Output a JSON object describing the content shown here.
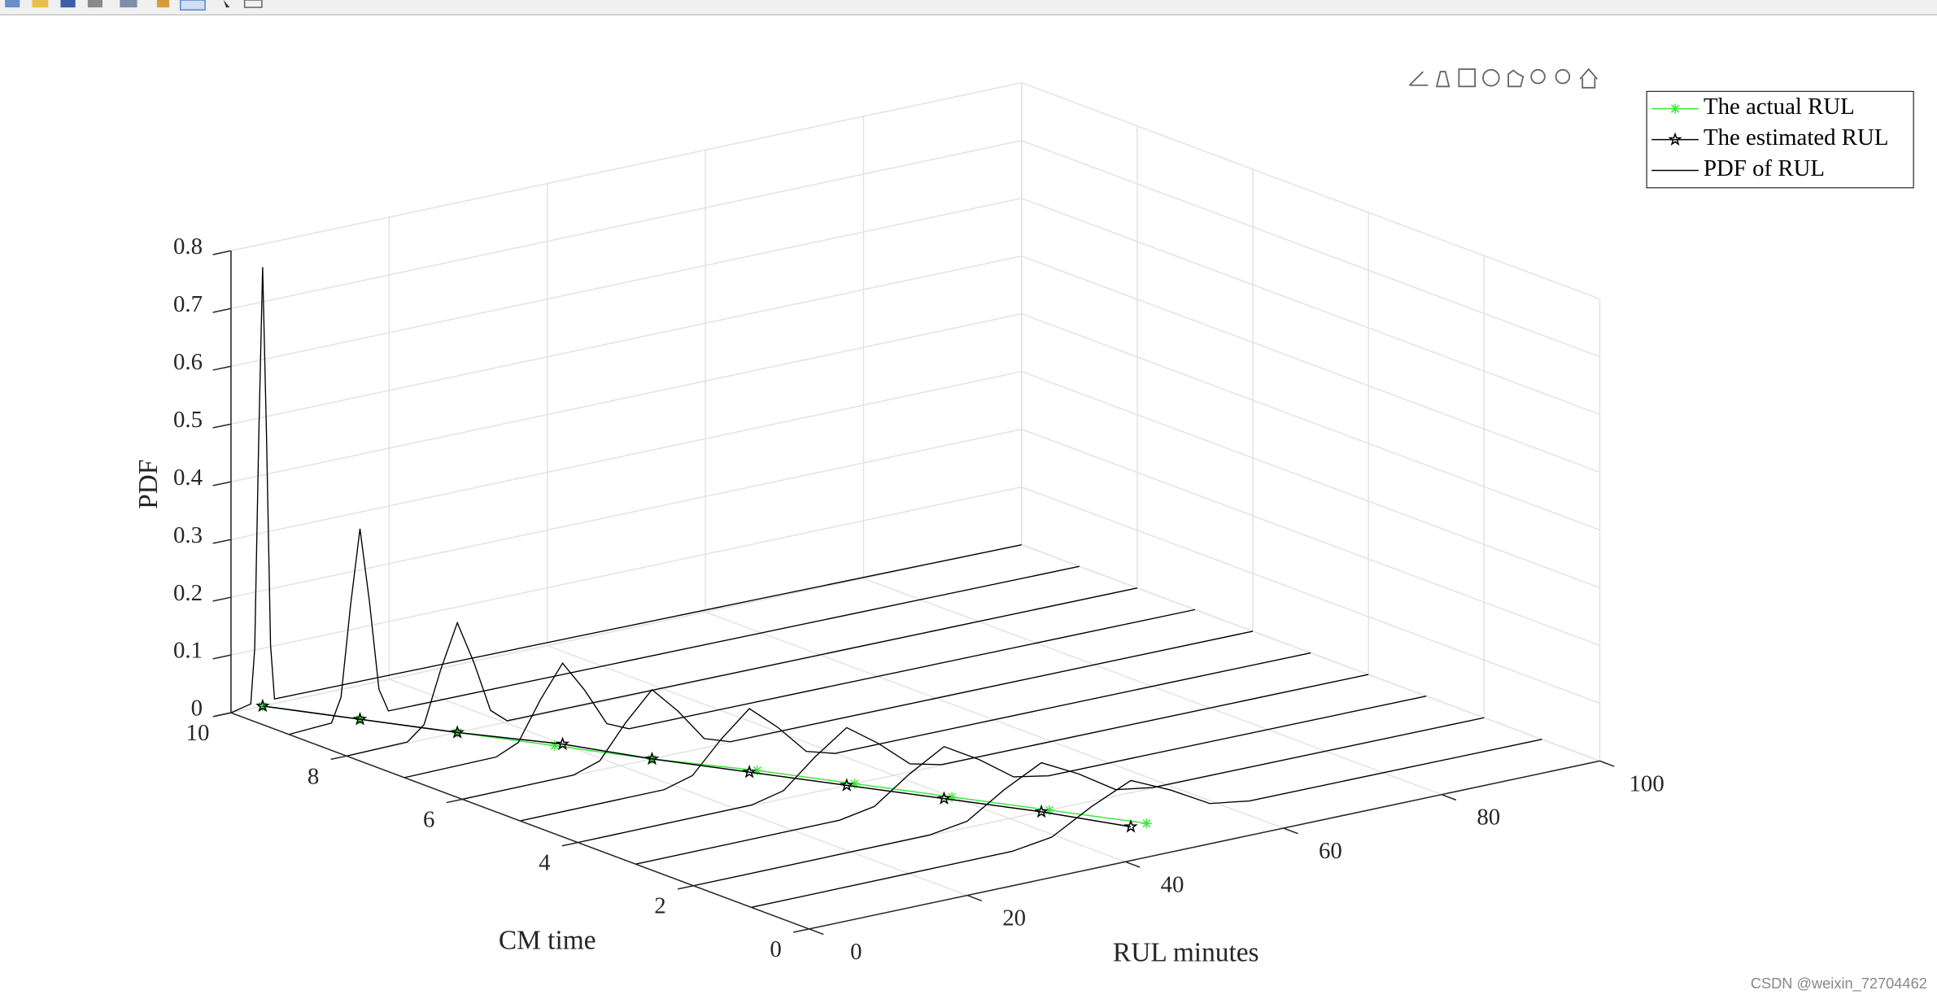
{
  "window": {
    "watermark": "CSDN @weixin_72704462"
  },
  "chart_data": {
    "type": "line3d",
    "xlabel": "RUL minutes",
    "ylabel": "CM time",
    "zlabel": "PDF",
    "xlim": [
      0,
      100
    ],
    "ylim": [
      0,
      10
    ],
    "zlim": [
      0,
      0.8
    ],
    "xticks": [
      0,
      20,
      40,
      60,
      80,
      100
    ],
    "yticks": [
      0,
      2,
      4,
      6,
      8,
      10
    ],
    "zticks": [
      0,
      0.1,
      0.2,
      0.3,
      0.4,
      0.5,
      0.6,
      0.7,
      0.8
    ],
    "grid": true,
    "legend": "top-right",
    "series": [
      {
        "name": "The actual RUL",
        "color": "#3ee63e",
        "marker": "asterisk",
        "x": [
          4,
          9,
          14,
          19,
          24,
          30,
          35,
          40,
          45,
          50
        ],
        "y": [
          10,
          9,
          8,
          7,
          6,
          5,
          4,
          3,
          2,
          1
        ],
        "values": [
          0,
          0,
          0,
          0,
          0,
          0,
          0,
          0,
          0,
          0
        ]
      },
      {
        "name": "The estimated RUL",
        "color": "#000000",
        "marker": "pentagram",
        "x": [
          4,
          9,
          14,
          20,
          24,
          29,
          34,
          39,
          44,
          48
        ],
        "y": [
          10,
          9,
          8,
          7,
          6,
          5,
          4,
          3,
          2,
          1
        ],
        "values": [
          0,
          0,
          0,
          0,
          0,
          0,
          0,
          0,
          0,
          0
        ]
      },
      {
        "name": "PDF of RUL",
        "color": "#000000",
        "curves": [
          {
            "y": 10,
            "x": [
              0,
              2.5,
              3,
              3.5,
              4,
              4.5,
              5,
              5.5,
              100
            ],
            "values": [
              0,
              0.008,
              0.103,
              0.461,
              0.76,
              0.461,
              0.103,
              0.008,
              0
            ]
          },
          {
            "y": 9,
            "x": [
              0,
              5.4,
              6.6,
              7.8,
              9,
              10.2,
              11.4,
              12.6,
              100
            ],
            "values": [
              0,
              0.004,
              0.045,
              0.2,
              0.33,
              0.2,
              0.045,
              0.004,
              0
            ]
          },
          {
            "y": 8,
            "x": [
              0,
              7.7,
              9.8,
              11.9,
              14,
              16.1,
              18.2,
              20.3,
              100
            ],
            "values": [
              0,
              0.002,
              0.026,
              0.115,
              0.19,
              0.115,
              0.026,
              0.002,
              0
            ]
          },
          {
            "y": 7,
            "x": [
              0,
              11.6,
              14.4,
              17.2,
              20,
              22.8,
              25.6,
              28.4,
              100
            ],
            "values": [
              0,
              0.002,
              0.019,
              0.085,
              0.14,
              0.085,
              0.019,
              0.002,
              0
            ]
          },
          {
            "y": 6,
            "x": [
              0,
              14.1,
              17.4,
              20.7,
              24,
              27.3,
              30.6,
              33.9,
              100
            ],
            "values": [
              0,
              0.001,
              0.016,
              0.073,
              0.12,
              0.073,
              0.016,
              0.001,
              0
            ]
          },
          {
            "y": 5,
            "x": [
              0,
              18.2,
              21.8,
              25.4,
              29,
              32.6,
              36.2,
              39.8,
              100
            ],
            "values": [
              0,
              0.001,
              0.015,
              0.067,
              0.11,
              0.067,
              0.015,
              0.001,
              0
            ]
          },
          {
            "y": 4,
            "x": [
              0,
              22,
              26,
              30,
              34,
              38,
              42,
              46,
              100
            ],
            "values": [
              0,
              0.001,
              0.014,
              0.061,
              0.1,
              0.061,
              0.014,
              0.001,
              0
            ]
          },
          {
            "y": 3,
            "x": [
              0,
              25.8,
              30.2,
              34.6,
              39,
              43.4,
              47.8,
              52.2,
              100
            ],
            "values": [
              0,
              0.001,
              0.012,
              0.055,
              0.09,
              0.055,
              0.012,
              0.001,
              0
            ]
          },
          {
            "y": 2,
            "x": [
              0,
              29.9,
              34.6,
              39.3,
              44,
              48.7,
              53.4,
              58.1,
              100
            ],
            "values": [
              0,
              0.001,
              0.011,
              0.052,
              0.085,
              0.052,
              0.011,
              0.001,
              0
            ]
          },
          {
            "y": 1,
            "x": [
              0,
              33,
              38,
              43,
              48,
              53,
              58,
              63,
              100
            ],
            "values": [
              0,
              0.001,
              0.011,
              0.049,
              0.08,
              0.049,
              0.011,
              0.001,
              0
            ]
          }
        ]
      }
    ]
  }
}
